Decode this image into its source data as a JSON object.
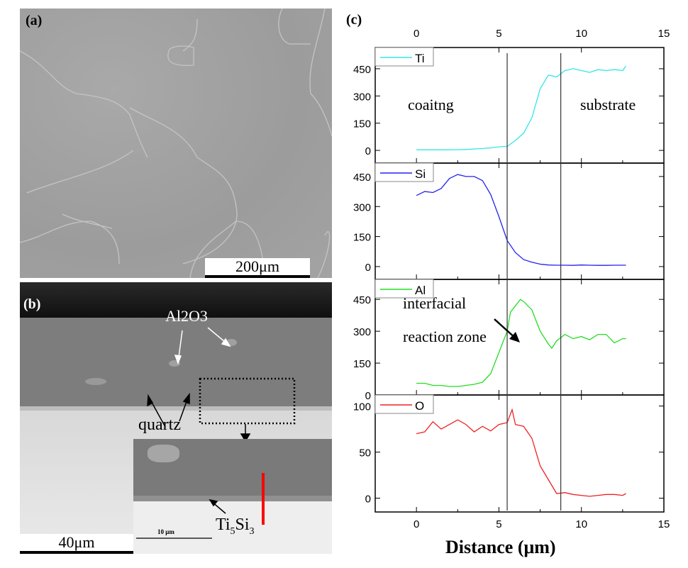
{
  "panel_a": {
    "label": "(a)",
    "scale_bar": "200μm"
  },
  "panel_b": {
    "label": "(b)",
    "scale_bar": "40μm",
    "inset_scale_bar": "10 μm",
    "annotations": {
      "al2o3": "Al2O3",
      "quartz": "quartz",
      "ti5si3_main": "Ti",
      "ti5si3_sub1": "5",
      "ti5si3_mid": "Si",
      "ti5si3_sub2": "3"
    },
    "colors": {
      "line_scan": "#ff0000"
    }
  },
  "panel_c": {
    "label": "(c)",
    "annotations": {
      "coating": "coaitng",
      "substrate": "substrate",
      "zone_line1": "interfacial",
      "zone_line2": "reaction zone"
    }
  },
  "chart_data": {
    "type": "line",
    "xlabel": "Distance (μm)",
    "xlim": [
      -2.5,
      15
    ],
    "xticks": [
      0,
      5,
      10,
      15
    ],
    "boundaries_x": [
      5.5,
      8.75
    ],
    "grid": false,
    "legend_position": "top-left",
    "panels": [
      {
        "name": "Ti",
        "color": "#33e6e6",
        "ylim": [
          -70,
          567
        ],
        "yticks": [
          0,
          150,
          300,
          450
        ],
        "x": [
          0,
          0.5,
          1,
          1.5,
          2,
          2.5,
          3,
          3.5,
          4,
          4.5,
          5,
          5.5,
          6,
          6.5,
          7,
          7.5,
          8,
          8.5,
          9,
          9.5,
          10,
          10.5,
          11,
          11.5,
          12,
          12.5,
          12.7
        ],
        "y": [
          3,
          3,
          3,
          3,
          3,
          4,
          5,
          8,
          10,
          14,
          20,
          22,
          55,
          95,
          180,
          340,
          415,
          405,
          440,
          450,
          440,
          430,
          445,
          440,
          445,
          440,
          465
        ]
      },
      {
        "name": "Si",
        "color": "#2222ee",
        "ylim": [
          -64,
          517
        ],
        "yticks": [
          0,
          150,
          300,
          450
        ],
        "x": [
          0,
          0.5,
          1,
          1.5,
          2,
          2.5,
          3,
          3.5,
          4,
          4.5,
          5,
          5.5,
          6,
          6.5,
          7,
          7.5,
          8,
          8.5,
          9,
          9.5,
          10,
          10.5,
          11,
          11.5,
          12,
          12.5,
          12.7
        ],
        "y": [
          355,
          375,
          370,
          390,
          440,
          460,
          450,
          450,
          430,
          360,
          250,
          130,
          70,
          35,
          22,
          12,
          8,
          7,
          7,
          6,
          8,
          7,
          6,
          6,
          7,
          7,
          7
        ]
      },
      {
        "name": "Al",
        "color": "#22dd22",
        "ylim": [
          0,
          544
        ],
        "yticks": [
          0,
          150,
          300,
          450
        ],
        "x": [
          0,
          0.5,
          1,
          1.5,
          2,
          2.5,
          3,
          3.5,
          4,
          4.5,
          5,
          5.5,
          5.7,
          6,
          6.3,
          6.5,
          7,
          7.5,
          8,
          8.2,
          8.5,
          9,
          9.5,
          10,
          10.5,
          11,
          11.5,
          12,
          12.5,
          12.7
        ],
        "y": [
          55,
          55,
          45,
          45,
          40,
          40,
          45,
          50,
          60,
          100,
          200,
          300,
          390,
          420,
          450,
          440,
          400,
          300,
          240,
          220,
          255,
          285,
          265,
          275,
          260,
          285,
          285,
          245,
          265,
          265
        ]
      },
      {
        "name": "O",
        "color": "#ee2222",
        "ylim": [
          -15,
          112
        ],
        "yticks": [
          0,
          50,
          100
        ],
        "x": [
          0,
          0.5,
          1,
          1.5,
          2,
          2.5,
          3,
          3.5,
          4,
          4.5,
          5,
          5.5,
          5.8,
          6,
          6.5,
          7,
          7.5,
          8,
          8.5,
          9,
          9.5,
          10,
          10.5,
          11,
          11.5,
          12,
          12.5,
          12.7
        ],
        "y": [
          70,
          72,
          83,
          75,
          80,
          85,
          80,
          72,
          78,
          73,
          80,
          82,
          96,
          80,
          78,
          65,
          35,
          20,
          5,
          6,
          4,
          3,
          2,
          3,
          4,
          4,
          3,
          5
        ]
      }
    ]
  }
}
